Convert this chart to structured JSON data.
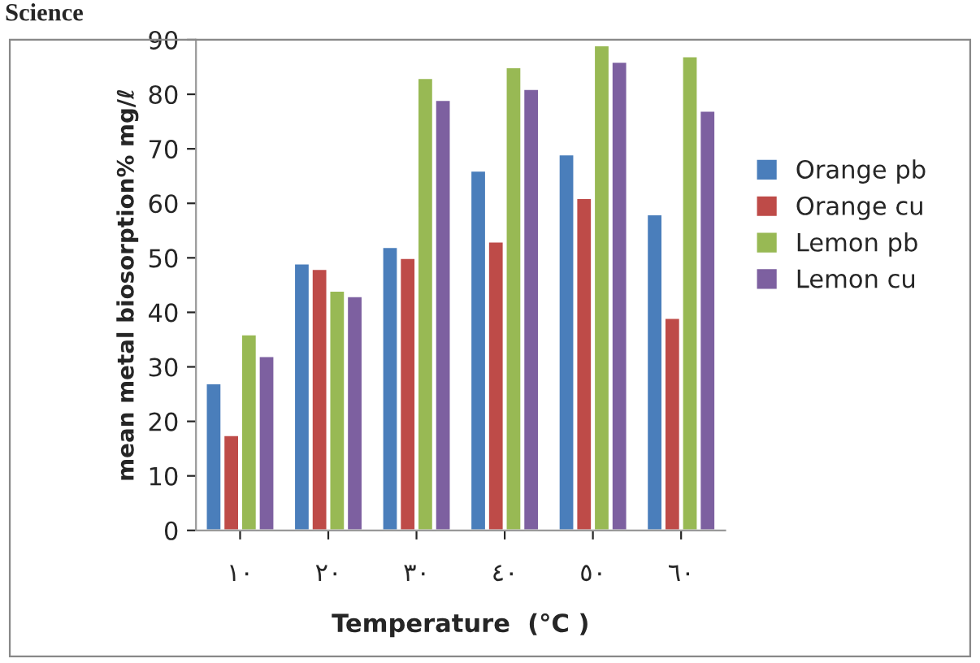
{
  "chart_data": {
    "type": "bar",
    "categories": [
      "١٠",
      "٢٠",
      "٣٠",
      "٤٠",
      "٥٠",
      "٦٠"
    ],
    "series": [
      {
        "name": "Orange pb",
        "color": "#4a7ebb",
        "values": [
          27,
          49,
          52,
          66,
          69,
          58
        ]
      },
      {
        "name": "Orange cu",
        "color": "#be4b48",
        "values": [
          17.5,
          48,
          50,
          53,
          61,
          39
        ]
      },
      {
        "name": "Lemon pb",
        "color": "#98b954",
        "values": [
          36,
          44,
          83,
          85,
          89,
          87
        ]
      },
      {
        "name": "Lemon cu",
        "color": "#7d60a0",
        "values": [
          32,
          43,
          79,
          81,
          86,
          77
        ]
      }
    ],
    "xlabel": "Temperature  (°C )",
    "ylabel": "mean metal biosorption% mg/ℓ",
    "ylim": [
      0,
      90
    ],
    "yticks": [
      0,
      10,
      20,
      30,
      40,
      50,
      60,
      70,
      80,
      90
    ],
    "legend": "right",
    "grid": false,
    "annotations": [
      "Science"
    ]
  }
}
